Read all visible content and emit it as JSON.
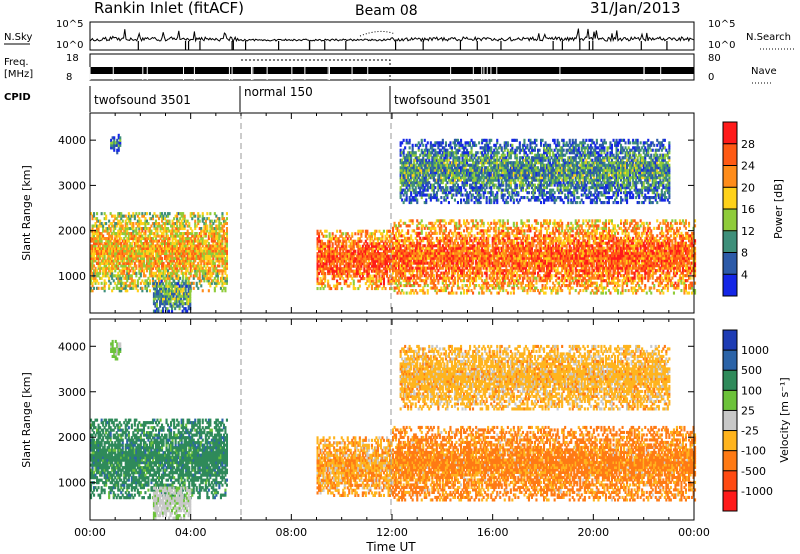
{
  "header": {
    "title": "Rankin Inlet (fitACF)",
    "beam": "Beam 08",
    "date": "31/Jan/2013"
  },
  "ancillary": {
    "nsky_label": "N.Sky",
    "nsky_ticks": [
      "10^5",
      "10^0"
    ],
    "nsearch_label": "N.Search",
    "nsearch_ticks": [
      "10^5",
      "10^0"
    ],
    "freq_label": "Freq.",
    "freq_unit": "[MHz]",
    "freq_ticks": [
      "18",
      "8"
    ],
    "nave_label": "Nave",
    "nave_ticks": [
      "80",
      "0"
    ],
    "cpid_label": "CPID",
    "cpid_segments": [
      {
        "name": "twofsound 3501",
        "start_h": 0,
        "end_h": 6
      },
      {
        "name": "normal 150",
        "start_h": 6,
        "end_h": 12
      },
      {
        "name": "twofsound 3501",
        "start_h": 12,
        "end_h": 24
      }
    ]
  },
  "panels": {
    "power": {
      "ylabel": "Slant Range [km]",
      "cbar_label": "Power [dB]"
    },
    "velocity": {
      "ylabel": "Slant Range [km]",
      "cbar_label": "Velocity [m s⁻¹]"
    },
    "xlabel": "Time UT"
  },
  "chart_data": [
    {
      "type": "heatmap",
      "title": "Power",
      "xlabel": "Time UT",
      "ylabel": "Slant Range [km]",
      "x_ticks": [
        "00:00",
        "04:00",
        "08:00",
        "12:00",
        "16:00",
        "20:00",
        "00:00"
      ],
      "xlim_hours": [
        0,
        24
      ],
      "y_ticks": [
        1000,
        2000,
        3000,
        4000
      ],
      "ylim": [
        180,
        4600
      ],
      "colorbar": {
        "label": "Power [dB]",
        "ticks": [
          4,
          8,
          12,
          16,
          20,
          24,
          28
        ],
        "range": [
          0,
          32
        ],
        "colors": [
          "#1426e6",
          "#2c5aa8",
          "#3e8f7a",
          "#8fcc3a",
          "#ffd21a",
          "#ff8c1a",
          "#ff5a14",
          "#ff1a1a"
        ]
      },
      "dashed_time_markers_h": [
        6,
        12
      ],
      "echo_regions": [
        {
          "t_start": 0.0,
          "t_end": 5.4,
          "r_low": 650,
          "r_high": 2400,
          "power_db": 20
        },
        {
          "t_start": 0.8,
          "t_end": 1.2,
          "r_low": 3700,
          "r_high": 4100,
          "power_db": 8
        },
        {
          "t_start": 2.5,
          "t_end": 4.0,
          "r_low": 200,
          "r_high": 900,
          "power_db": 12
        },
        {
          "t_start": 9.0,
          "t_end": 12.0,
          "r_low": 700,
          "r_high": 2000,
          "power_db": 26
        },
        {
          "t_start": 12.0,
          "t_end": 24.0,
          "r_low": 600,
          "r_high": 2200,
          "power_db": 25
        },
        {
          "t_start": 12.3,
          "t_end": 23.0,
          "r_low": 2600,
          "r_high": 4000,
          "power_db": 10
        }
      ]
    },
    {
      "type": "heatmap",
      "title": "Velocity",
      "xlabel": "Time UT",
      "ylabel": "Slant Range [km]",
      "x_ticks": [
        "00:00",
        "04:00",
        "08:00",
        "12:00",
        "16:00",
        "20:00",
        "00:00"
      ],
      "xlim_hours": [
        0,
        24
      ],
      "y_ticks": [
        1000,
        2000,
        3000,
        4000
      ],
      "ylim": [
        180,
        4600
      ],
      "colorbar": {
        "label": "Velocity [m s⁻¹]",
        "ticks": [
          1000,
          500,
          100,
          25,
          -25,
          -100,
          -500,
          -1000
        ],
        "colors": [
          "#1e3cb4",
          "#2c64a8",
          "#2f8a5a",
          "#6cc23a",
          "#c8c8c8",
          "#ffb41e",
          "#ff7a14",
          "#ff4a12",
          "#ff1a1a"
        ]
      },
      "dashed_time_markers_h": [
        6,
        12
      ],
      "echo_regions": [
        {
          "t_start": 0.0,
          "t_end": 5.4,
          "r_low": 650,
          "r_high": 2400,
          "velocity": 300
        },
        {
          "t_start": 0.8,
          "t_end": 1.2,
          "r_low": 3700,
          "r_high": 4100,
          "velocity": 50
        },
        {
          "t_start": 2.5,
          "t_end": 4.0,
          "r_low": 200,
          "r_high": 900,
          "velocity": 10
        },
        {
          "t_start": 9.0,
          "t_end": 12.0,
          "r_low": 700,
          "r_high": 2000,
          "velocity": -80
        },
        {
          "t_start": 12.0,
          "t_end": 24.0,
          "r_low": 600,
          "r_high": 2200,
          "velocity": -150
        },
        {
          "t_start": 12.3,
          "t_end": 23.0,
          "r_low": 2600,
          "r_high": 4000,
          "velocity": -60
        }
      ]
    }
  ]
}
